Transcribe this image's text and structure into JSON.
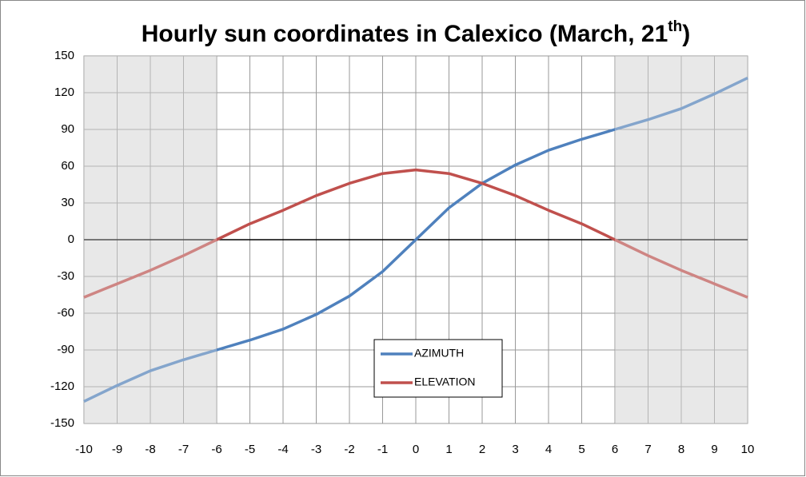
{
  "chart_data": {
    "type": "line",
    "title": {
      "text": "Hourly sun coordinates in Calexico (March, 21",
      "superscript": "th",
      "end": ")"
    },
    "x": [
      -10,
      -9,
      -8,
      -7,
      -6,
      -5,
      -4,
      -3,
      -2,
      -1,
      0,
      1,
      2,
      3,
      4,
      5,
      6,
      7,
      8,
      9,
      10
    ],
    "series": [
      {
        "name": "AZIMUTH",
        "color": "#4f81bd",
        "values": [
          -132,
          -119,
          -107,
          -98,
          -90,
          -82,
          -73,
          -61,
          -46,
          -26,
          0,
          26,
          46,
          61,
          73,
          82,
          90,
          98,
          107,
          119,
          132
        ]
      },
      {
        "name": "ELEVATION",
        "color": "#c0504d",
        "values": [
          -47,
          -36,
          -25,
          -13,
          0,
          13,
          24,
          36,
          46,
          54,
          57,
          54,
          46,
          36,
          24,
          13,
          0,
          -13,
          -25,
          -36,
          -47
        ]
      }
    ],
    "xlim": [
      -10,
      10
    ],
    "xticks": [
      -10,
      -9,
      -8,
      -7,
      -6,
      -5,
      -4,
      -3,
      -2,
      -1,
      0,
      1,
      2,
      3,
      4,
      5,
      6,
      7,
      8,
      9,
      10
    ],
    "ylim": [
      -150,
      150
    ],
    "yticks": [
      -150,
      -120,
      -90,
      -60,
      -30,
      0,
      30,
      60,
      90,
      120,
      150
    ],
    "grid": true,
    "legend": "lower center",
    "shaded_x": [
      [
        -10,
        -6
      ],
      [
        6,
        10
      ]
    ]
  }
}
